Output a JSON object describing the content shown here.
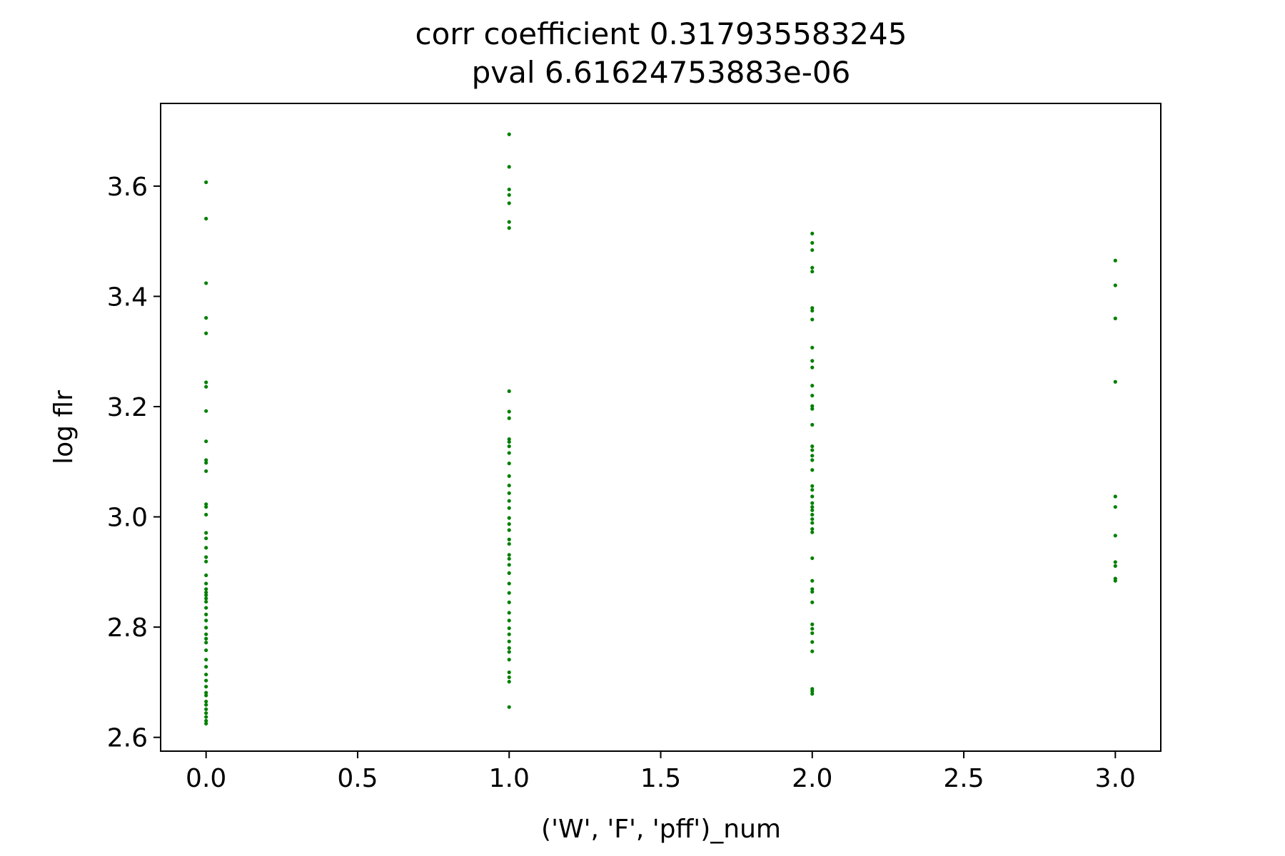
{
  "chart_data": {
    "type": "scatter",
    "title": "corr coefficient 0.317935583245",
    "subtitle": "pval 6.61624753883e-06",
    "xlabel": "('W', 'F', 'pff')_num",
    "ylabel": "log flr",
    "xlim": [
      -0.15,
      3.15
    ],
    "ylim": [
      2.575,
      3.75
    ],
    "xticks": [
      "0.0",
      "0.5",
      "1.0",
      "1.5",
      "2.0",
      "2.5",
      "3.0"
    ],
    "yticks": [
      "2.6",
      "2.8",
      "3.0",
      "3.2",
      "3.4",
      "3.6"
    ],
    "grid": false,
    "marker_color": "#008000",
    "points": [
      {
        "x": 0,
        "ys": [
          3.607,
          3.541,
          3.424,
          3.361,
          3.333,
          3.244,
          3.236,
          3.192,
          3.137,
          3.103,
          3.098,
          3.083,
          3.023,
          3.018,
          3.004,
          2.971,
          2.961,
          2.944,
          2.927,
          2.919,
          2.894,
          2.879,
          2.869,
          2.863,
          2.858,
          2.852,
          2.846,
          2.835,
          2.823,
          2.812,
          2.799,
          2.787,
          2.779,
          2.772,
          2.758,
          2.741,
          2.728,
          2.714,
          2.703,
          2.692,
          2.681,
          2.676,
          2.665,
          2.659,
          2.651,
          2.644,
          2.637,
          2.63,
          2.625
        ]
      },
      {
        "x": 1,
        "ys": [
          3.694,
          3.635,
          3.594,
          3.584,
          3.569,
          3.535,
          3.524,
          3.228,
          3.191,
          3.179,
          3.141,
          3.136,
          3.128,
          3.116,
          3.097,
          3.074,
          3.057,
          3.043,
          3.029,
          3.016,
          2.998,
          2.987,
          2.976,
          2.959,
          2.951,
          2.931,
          2.924,
          2.913,
          2.898,
          2.879,
          2.862,
          2.845,
          2.826,
          2.812,
          2.798,
          2.787,
          2.774,
          2.762,
          2.755,
          2.741,
          2.718,
          2.709,
          2.701,
          2.655
        ]
      },
      {
        "x": 2,
        "ys": [
          3.514,
          3.497,
          3.484,
          3.452,
          3.445,
          3.379,
          3.374,
          3.358,
          3.307,
          3.283,
          3.271,
          3.238,
          3.22,
          3.201,
          3.196,
          3.167,
          3.128,
          3.121,
          3.111,
          3.103,
          3.085,
          3.056,
          3.049,
          3.037,
          3.025,
          3.018,
          3.012,
          3.004,
          2.996,
          2.989,
          2.978,
          2.972,
          2.925,
          2.884,
          2.869,
          2.864,
          2.845,
          2.805,
          2.797,
          2.789,
          2.773,
          2.756,
          2.688,
          2.684,
          2.679
        ]
      },
      {
        "x": 3,
        "ys": [
          3.465,
          3.42,
          3.36,
          3.245,
          3.037,
          3.018,
          2.966,
          2.918,
          2.911,
          2.888,
          2.884
        ]
      }
    ]
  }
}
